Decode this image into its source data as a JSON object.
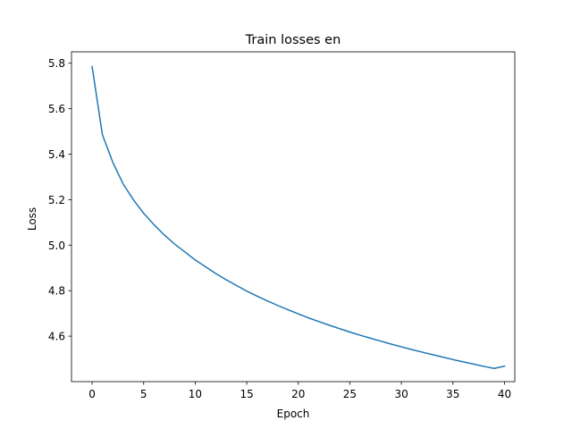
{
  "chart_data": {
    "type": "line",
    "title": "Train losses en",
    "xlabel": "Epoch",
    "ylabel": "Loss",
    "xlim": [
      -2,
      41
    ],
    "ylim": [
      4.4,
      5.85
    ],
    "xticks": [
      0,
      5,
      10,
      15,
      20,
      25,
      30,
      35,
      40
    ],
    "yticks": [
      4.6,
      4.8,
      5.0,
      5.2,
      5.4,
      5.6,
      5.8
    ],
    "ytick_labels": [
      "4.6",
      "4.8",
      "5.0",
      "5.2",
      "5.4",
      "5.6",
      "5.8"
    ],
    "grid": false,
    "legend": "none",
    "series": [
      {
        "color": "#1f77b4",
        "x": [
          0,
          1,
          2,
          3,
          4,
          5,
          6,
          7,
          8,
          9,
          10,
          11,
          12,
          13,
          14,
          15,
          16,
          17,
          18,
          19,
          20,
          21,
          22,
          23,
          24,
          25,
          26,
          27,
          28,
          29,
          30,
          31,
          32,
          33,
          34,
          35,
          36,
          37,
          38,
          39,
          40
        ],
        "values": [
          5.785,
          5.485,
          5.365,
          5.27,
          5.2,
          5.14,
          5.09,
          5.045,
          5.005,
          4.97,
          4.935,
          4.905,
          4.875,
          4.848,
          4.823,
          4.798,
          4.776,
          4.755,
          4.735,
          4.716,
          4.698,
          4.68,
          4.664,
          4.648,
          4.633,
          4.618,
          4.604,
          4.591,
          4.578,
          4.565,
          4.553,
          4.541,
          4.53,
          4.519,
          4.508,
          4.497,
          4.487,
          4.477,
          4.467,
          4.458,
          4.468
        ]
      }
    ]
  }
}
